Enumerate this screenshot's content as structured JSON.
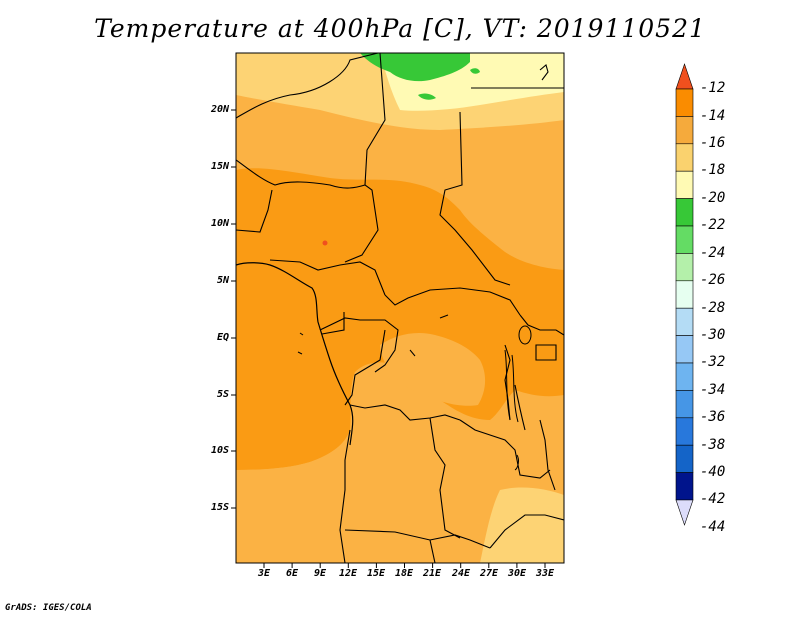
{
  "title": "Temperature at 400hPa [C], VT: 2019110521",
  "credit": "GrADS: IGES/COLA",
  "map": {
    "region": "Central Africa",
    "lat_labels": [
      "20N",
      "15N",
      "10N",
      "5N",
      "EQ",
      "5S",
      "10S",
      "15S"
    ],
    "lon_labels": [
      "3E",
      "6E",
      "9E",
      "12E",
      "15E",
      "18E",
      "21E",
      "24E",
      "27E",
      "30E",
      "33E"
    ]
  },
  "colorbar": {
    "labels": [
      "-12",
      "-14",
      "-16",
      "-18",
      "-20",
      "-22",
      "-24",
      "-26",
      "-28",
      "-30",
      "-32",
      "-34",
      "-36",
      "-38",
      "-40",
      "-42",
      "-44"
    ],
    "colors": [
      "#f0501e",
      "#fa8c00",
      "#f5aa3c",
      "#fad26e",
      "#fffab4",
      "#37c837",
      "#64dc64",
      "#b4f0aa",
      "#e6fff0",
      "#b4dcf5",
      "#96c8f5",
      "#6eb4f0",
      "#4696e6",
      "#2878dc",
      "#1464c8",
      "#00148c",
      "#dcdcfa"
    ],
    "top_arrow_color": "#f0501e",
    "bottom_arrow_color": "#dcdcfa"
  },
  "field_colors": {
    "c14": "#fa9b14",
    "c14b": "#fba322",
    "c16": "#fbb244",
    "c18": "#fdd374",
    "c20": "#fffab4",
    "c22": "#37c837",
    "c12": "#f0501e"
  }
}
